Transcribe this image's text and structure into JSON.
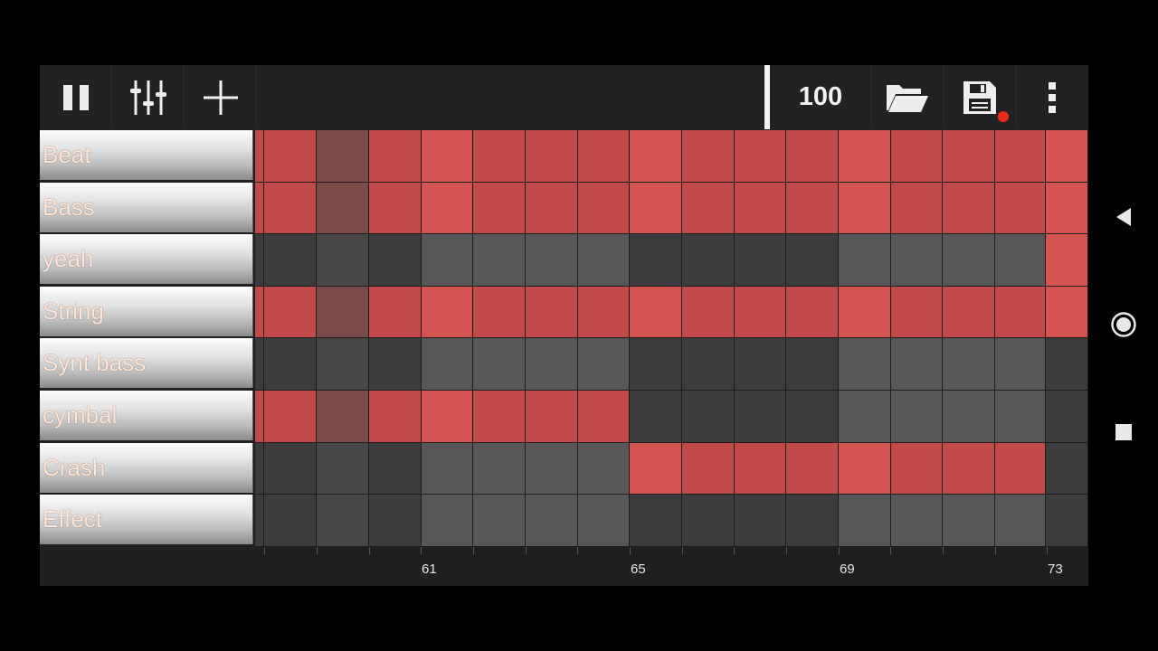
{
  "toolbar": {
    "bpm": "100",
    "icons": [
      "pause-icon",
      "mixer-icon",
      "add-icon",
      "folder-open-icon",
      "save-icon",
      "more-vert-icon"
    ]
  },
  "tracks": [
    {
      "label": "Beat"
    },
    {
      "label": "Bass"
    },
    {
      "label": "yeah"
    },
    {
      "label": "String"
    },
    {
      "label": "Synt bass"
    },
    {
      "label": "cymbal"
    },
    {
      "label": "Crash"
    },
    {
      "label": "Effect"
    }
  ],
  "pattern": [
    [
      1,
      1,
      1,
      1,
      1,
      1,
      1,
      1,
      1,
      1,
      1,
      1,
      1,
      1,
      1,
      1
    ],
    [
      1,
      1,
      1,
      1,
      1,
      1,
      1,
      1,
      1,
      1,
      1,
      1,
      1,
      1,
      1,
      1
    ],
    [
      0,
      0,
      0,
      0,
      0,
      0,
      0,
      0,
      0,
      0,
      0,
      0,
      0,
      0,
      0,
      1
    ],
    [
      1,
      1,
      1,
      1,
      1,
      1,
      1,
      1,
      1,
      1,
      1,
      1,
      1,
      1,
      1,
      1
    ],
    [
      0,
      0,
      0,
      0,
      0,
      0,
      0,
      0,
      0,
      0,
      0,
      0,
      0,
      0,
      0,
      0
    ],
    [
      1,
      1,
      1,
      1,
      1,
      1,
      1,
      0,
      0,
      0,
      0,
      0,
      0,
      0,
      0,
      0
    ],
    [
      0,
      0,
      0,
      0,
      0,
      0,
      0,
      1,
      1,
      1,
      1,
      1,
      1,
      1,
      1,
      0
    ],
    [
      0,
      0,
      0,
      0,
      0,
      0,
      0,
      0,
      0,
      0,
      0,
      0,
      0,
      0,
      0,
      0
    ]
  ],
  "ruler": {
    "labels": [
      "61",
      "65",
      "69",
      "73"
    ]
  },
  "colors": {
    "active_dark": "#c24a48",
    "active_light": "#d45451",
    "active_muted": "#7c4a49",
    "inactive_dark": "#3c3c3c",
    "inactive_mid": "#474747",
    "inactive_light": "#575757"
  },
  "system_nav": {
    "icons": [
      "back-icon",
      "home-icon",
      "recents-icon"
    ]
  }
}
